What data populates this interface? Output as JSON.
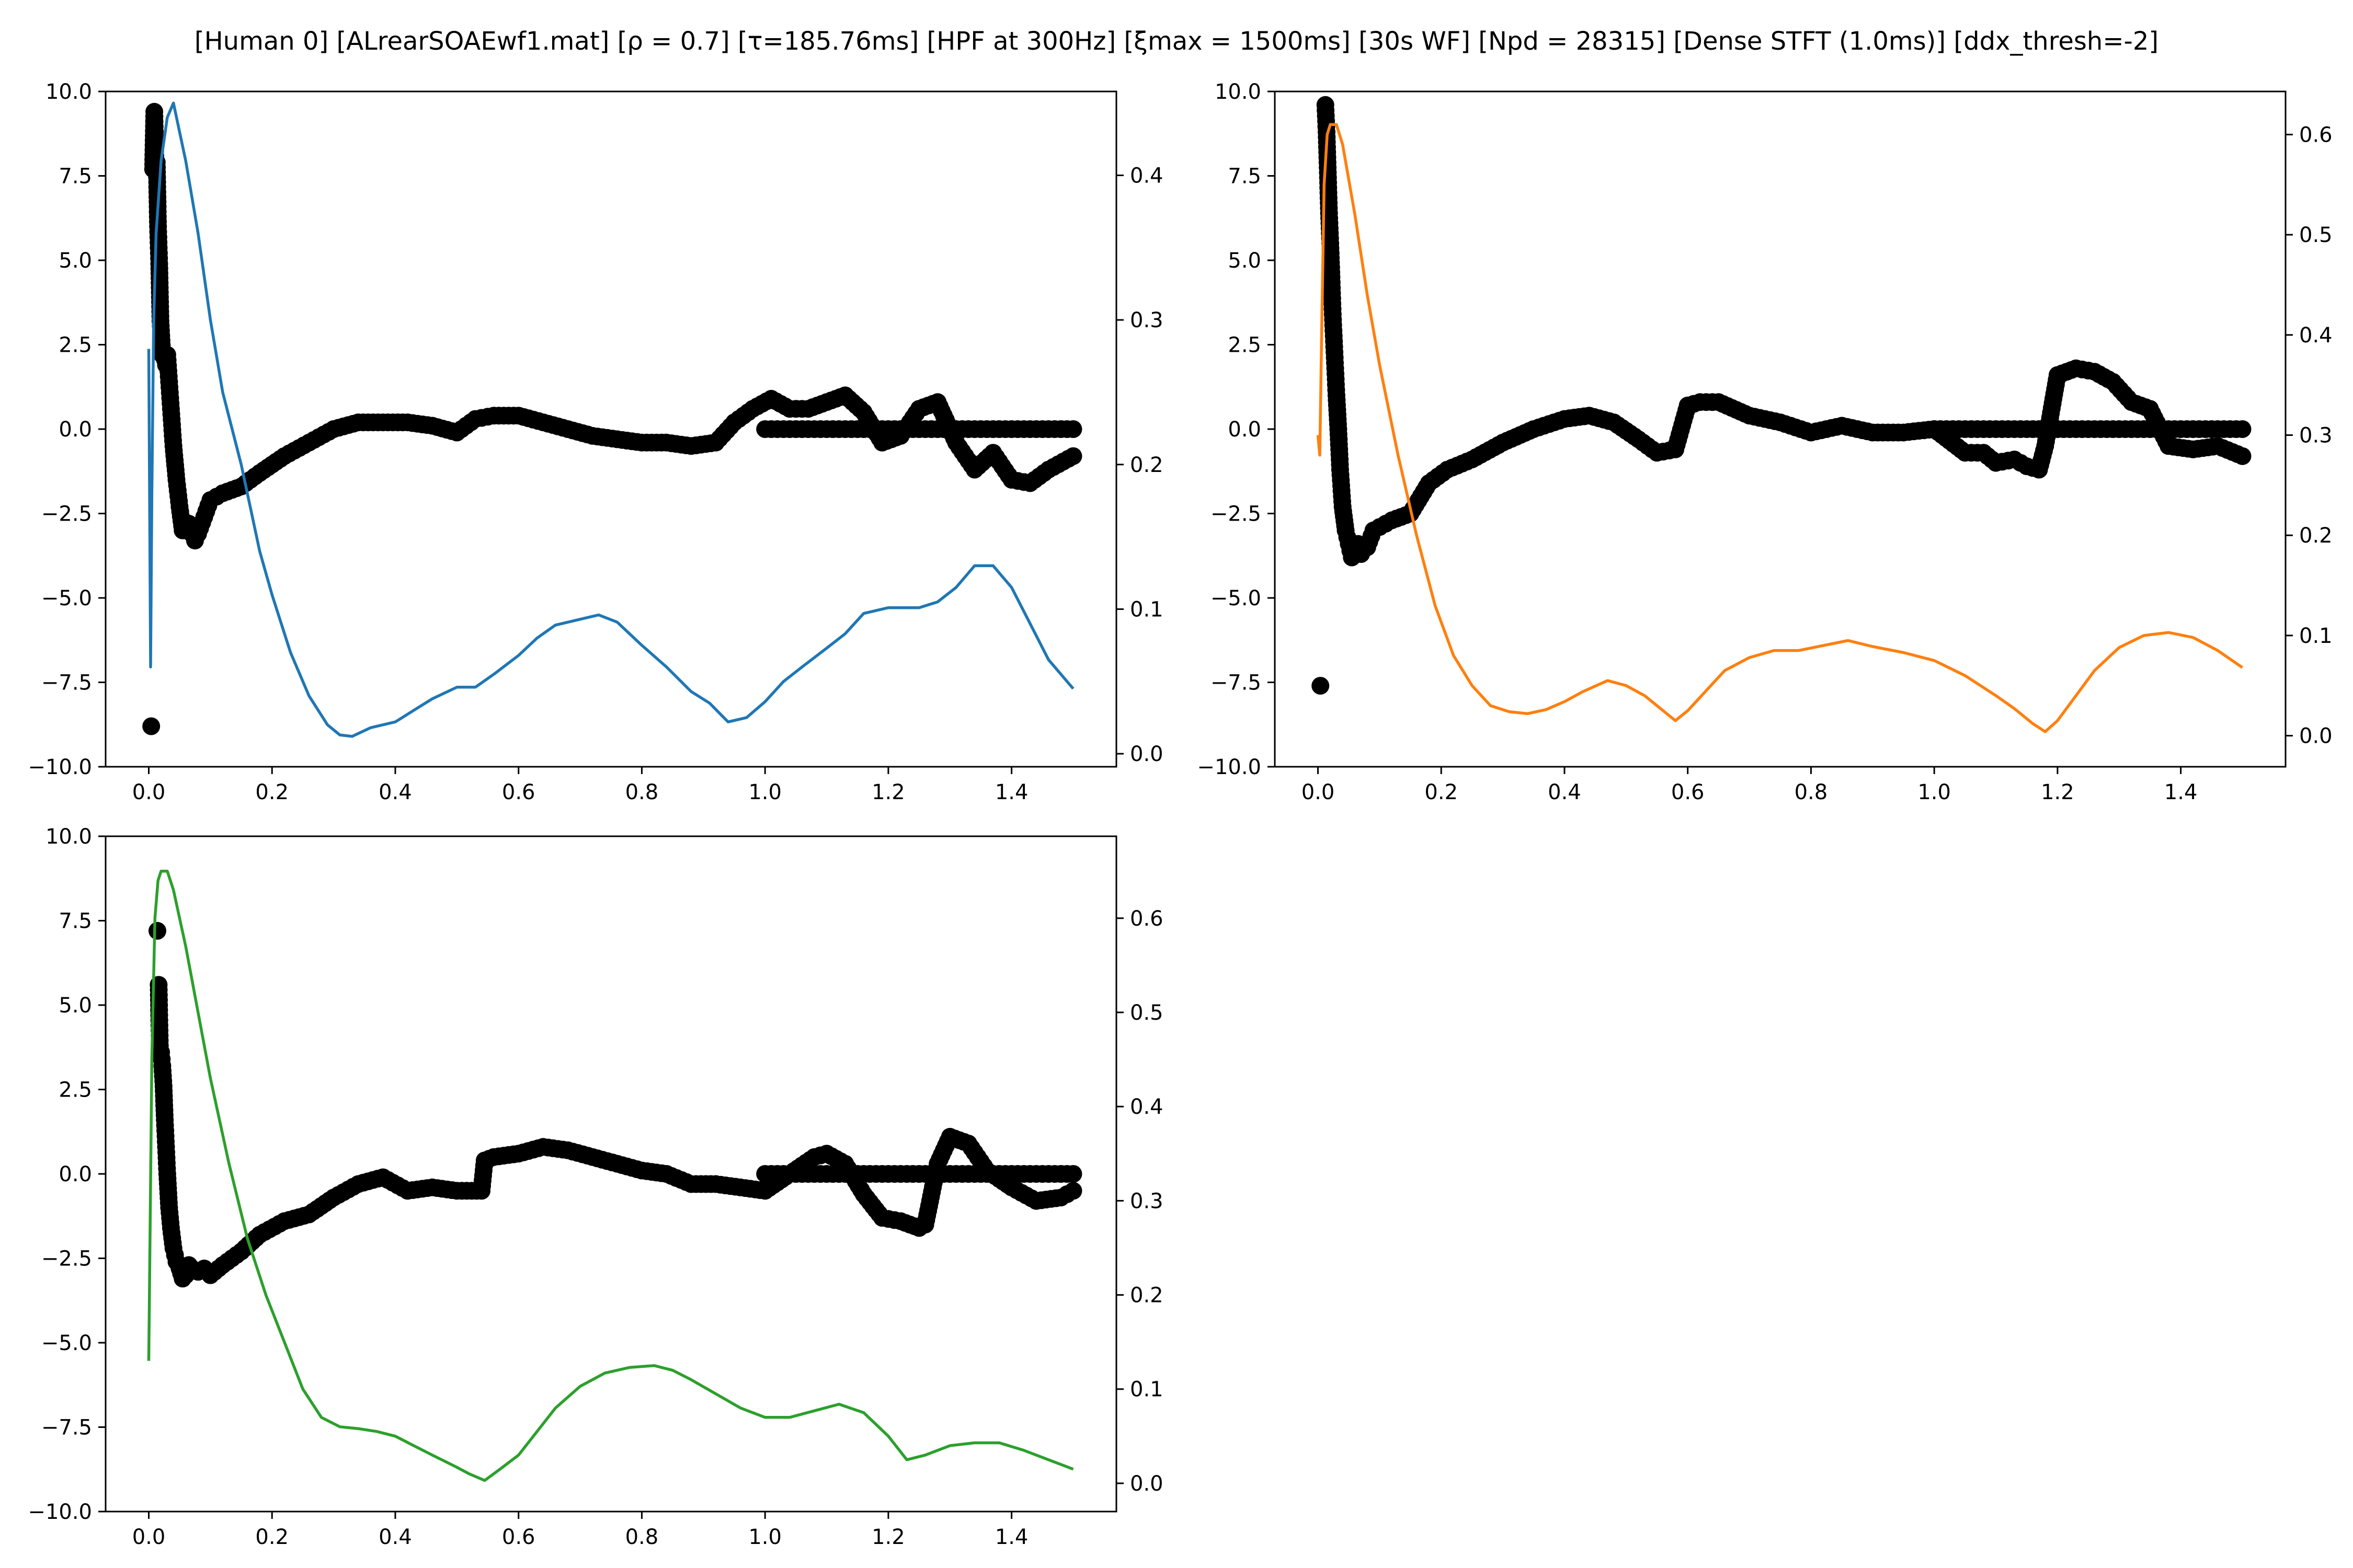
{
  "figure": {
    "suptitle": "[Human 0]   [ALrearSOAEwf1.mat]   [ρ = 0.7]   [τ=185.76ms]   [HPF at 300Hz]   [ξmax = 1500ms]   [30s WF]   [Npd = 28315]   [Dense STFT (1.0ms)]   [ddx_thresh=-2]"
  },
  "colors": {
    "scatter": "#000000",
    "axes": "#000000"
  },
  "chart_data": [
    {
      "type": "line",
      "panel": "top-left",
      "title": "",
      "xlabel": "",
      "ylabel": "",
      "xlim": [
        -0.07,
        1.57
      ],
      "xticks": [
        0.0,
        0.2,
        0.4,
        0.6,
        0.8,
        1.0,
        1.2,
        1.4
      ],
      "xtick_labels": [
        "0.0",
        "0.2",
        "0.4",
        "0.6",
        "0.8",
        "1.0",
        "1.2",
        "1.4"
      ],
      "ylim_left": [
        -10,
        10
      ],
      "yticks_left": [
        -10,
        -7.5,
        -5,
        -2.5,
        0,
        2.5,
        5,
        7.5,
        10
      ],
      "ytick_labels_left": [
        "−10.0",
        "−7.5",
        "−5.0",
        "−2.5",
        "0.0",
        "2.5",
        "5.0",
        "7.5",
        "10.0"
      ],
      "ylim_right": [
        -0.009,
        0.458
      ],
      "yticks_right": [
        0.0,
        0.1,
        0.2,
        0.3,
        0.4
      ],
      "ytick_labels_right": [
        "0.0",
        "0.1",
        "0.2",
        "0.3",
        "0.4"
      ],
      "line_color": "#1f77b4",
      "line": {
        "axis": "right",
        "x": [
          0.0,
          0.003,
          0.005,
          0.008,
          0.012,
          0.02,
          0.03,
          0.04,
          0.06,
          0.08,
          0.1,
          0.12,
          0.15,
          0.18,
          0.2,
          0.23,
          0.26,
          0.29,
          0.31,
          0.33,
          0.36,
          0.4,
          0.43,
          0.46,
          0.5,
          0.53,
          0.56,
          0.6,
          0.63,
          0.66,
          0.7,
          0.73,
          0.76,
          0.8,
          0.84,
          0.88,
          0.91,
          0.94,
          0.97,
          1.0,
          1.03,
          1.06,
          1.1,
          1.13,
          1.16,
          1.2,
          1.25,
          1.28,
          1.31,
          1.34,
          1.37,
          1.4,
          1.43,
          1.46,
          1.5
        ],
        "y": [
          0.28,
          0.06,
          0.18,
          0.3,
          0.36,
          0.41,
          0.44,
          0.45,
          0.41,
          0.36,
          0.3,
          0.25,
          0.2,
          0.14,
          0.11,
          0.07,
          0.04,
          0.02,
          0.013,
          0.012,
          0.018,
          0.022,
          0.03,
          0.038,
          0.046,
          0.046,
          0.055,
          0.068,
          0.08,
          0.089,
          0.093,
          0.096,
          0.091,
          0.075,
          0.06,
          0.043,
          0.035,
          0.022,
          0.025,
          0.036,
          0.05,
          0.06,
          0.073,
          0.083,
          0.097,
          0.101,
          0.101,
          0.105,
          0.115,
          0.13,
          0.13,
          0.115,
          0.09,
          0.065,
          0.045
        ]
      },
      "scatter": {
        "axis": "left",
        "x": [
          0.004,
          0.007,
          0.009,
          0.011,
          0.013,
          0.015,
          0.017,
          0.019,
          0.022,
          0.025,
          0.028,
          0.03,
          0.033,
          0.036,
          0.04,
          0.045,
          0.05,
          0.055,
          0.06,
          0.065,
          0.07,
          0.075,
          0.08,
          0.09,
          0.1,
          0.12,
          0.15,
          0.18,
          0.22,
          0.26,
          0.3,
          0.34,
          0.38,
          0.42,
          0.46,
          0.5,
          0.53,
          0.56,
          0.6,
          0.64,
          0.68,
          0.72,
          0.76,
          0.8,
          0.84,
          0.88,
          0.92,
          0.95,
          0.98,
          1.01,
          1.04,
          1.07,
          1.1,
          1.13,
          1.16,
          1.19,
          1.22,
          1.25,
          1.28,
          1.31,
          1.34,
          1.37,
          1.4,
          1.43,
          1.46,
          1.5
        ],
        "y": [
          -8.8,
          7.7,
          9.4,
          7.8,
          7.9,
          6.0,
          4.9,
          3.2,
          2.2,
          2.2,
          1.9,
          2.2,
          1.4,
          0.6,
          -0.5,
          -1.5,
          -2.3,
          -3.0,
          -3.0,
          -2.8,
          -3.1,
          -3.3,
          -3.1,
          -2.6,
          -2.1,
          -1.9,
          -1.7,
          -1.3,
          -0.8,
          -0.4,
          0.0,
          0.2,
          0.2,
          0.2,
          0.1,
          -0.1,
          0.3,
          0.4,
          0.4,
          0.2,
          0.0,
          -0.2,
          -0.3,
          -0.4,
          -0.4,
          -0.5,
          -0.4,
          0.2,
          0.6,
          0.9,
          0.6,
          0.6,
          0.8,
          1.0,
          0.5,
          -0.4,
          -0.2,
          0.6,
          0.8,
          -0.4,
          -1.2,
          -0.7,
          -1.5,
          -1.6,
          -1.2,
          -0.8
        ]
      },
      "flat_segment": {
        "axis": "left",
        "x_start": 1.0,
        "x_end": 1.5,
        "y": 0.0
      }
    },
    {
      "type": "line",
      "panel": "top-right",
      "title": "",
      "xlabel": "",
      "ylabel": "",
      "xlim": [
        -0.07,
        1.57
      ],
      "xticks": [
        0.0,
        0.2,
        0.4,
        0.6,
        0.8,
        1.0,
        1.2,
        1.4
      ],
      "xtick_labels": [
        "0.0",
        "0.2",
        "0.4",
        "0.6",
        "0.8",
        "1.0",
        "1.2",
        "1.4"
      ],
      "ylim_left": [
        -10,
        10
      ],
      "yticks_left": [
        -10,
        -7.5,
        -5,
        -2.5,
        0,
        2.5,
        5,
        7.5,
        10
      ],
      "ytick_labels_left": [
        "−10.0",
        "−7.5",
        "−5.0",
        "−2.5",
        "0.0",
        "2.5",
        "5.0",
        "7.5",
        "10.0"
      ],
      "ylim_right": [
        -0.031,
        0.643
      ],
      "yticks_right": [
        0.0,
        0.1,
        0.2,
        0.3,
        0.4,
        0.5,
        0.6
      ],
      "ytick_labels_right": [
        "0.0",
        "0.1",
        "0.2",
        "0.3",
        "0.4",
        "0.5",
        "0.6"
      ],
      "line_color": "#ff7f0e",
      "line": {
        "axis": "right",
        "x": [
          0.0,
          0.003,
          0.006,
          0.01,
          0.015,
          0.02,
          0.03,
          0.04,
          0.06,
          0.08,
          0.1,
          0.13,
          0.16,
          0.19,
          0.22,
          0.25,
          0.28,
          0.31,
          0.34,
          0.37,
          0.4,
          0.43,
          0.47,
          0.5,
          0.53,
          0.56,
          0.58,
          0.6,
          0.63,
          0.66,
          0.7,
          0.74,
          0.78,
          0.82,
          0.86,
          0.9,
          0.95,
          1.0,
          1.05,
          1.1,
          1.13,
          1.16,
          1.18,
          1.2,
          1.23,
          1.26,
          1.3,
          1.34,
          1.38,
          1.42,
          1.46,
          1.5
        ],
        "y": [
          0.3,
          0.28,
          0.4,
          0.55,
          0.6,
          0.61,
          0.61,
          0.59,
          0.52,
          0.44,
          0.37,
          0.28,
          0.2,
          0.13,
          0.08,
          0.05,
          0.03,
          0.024,
          0.022,
          0.026,
          0.034,
          0.044,
          0.055,
          0.05,
          0.04,
          0.025,
          0.015,
          0.025,
          0.045,
          0.065,
          0.078,
          0.085,
          0.085,
          0.09,
          0.095,
          0.089,
          0.083,
          0.075,
          0.06,
          0.04,
          0.027,
          0.012,
          0.004,
          0.015,
          0.04,
          0.065,
          0.088,
          0.1,
          0.103,
          0.098,
          0.085,
          0.068
        ]
      },
      "scatter": {
        "axis": "left",
        "x": [
          0.004,
          0.012,
          0.014,
          0.016,
          0.018,
          0.02,
          0.022,
          0.024,
          0.026,
          0.028,
          0.03,
          0.033,
          0.036,
          0.04,
          0.045,
          0.05,
          0.055,
          0.06,
          0.065,
          0.07,
          0.08,
          0.09,
          0.1,
          0.12,
          0.15,
          0.18,
          0.21,
          0.25,
          0.3,
          0.35,
          0.4,
          0.44,
          0.48,
          0.52,
          0.55,
          0.58,
          0.6,
          0.62,
          0.65,
          0.7,
          0.75,
          0.8,
          0.85,
          0.9,
          0.95,
          1.0,
          1.05,
          1.08,
          1.1,
          1.13,
          1.15,
          1.17,
          1.18,
          1.2,
          1.23,
          1.26,
          1.29,
          1.32,
          1.35,
          1.38,
          1.42,
          1.46,
          1.5
        ],
        "y": [
          -7.6,
          9.6,
          8.8,
          7.6,
          6.4,
          5.5,
          4.5,
          3.4,
          2.6,
          1.8,
          1.0,
          0.0,
          -1.2,
          -2.3,
          -3.0,
          -3.4,
          -3.8,
          -3.7,
          -3.4,
          -3.7,
          -3.5,
          -3.0,
          -2.9,
          -2.7,
          -2.5,
          -1.6,
          -1.2,
          -0.9,
          -0.4,
          0.0,
          0.3,
          0.4,
          0.2,
          -0.3,
          -0.7,
          -0.6,
          0.7,
          0.8,
          0.8,
          0.4,
          0.2,
          -0.1,
          0.1,
          -0.1,
          -0.1,
          0.0,
          -0.7,
          -0.7,
          -1.0,
          -0.9,
          -1.1,
          -1.2,
          -0.5,
          1.6,
          1.8,
          1.7,
          1.4,
          0.8,
          0.6,
          -0.5,
          -0.6,
          -0.5,
          -0.8
        ]
      },
      "flat_segment": {
        "axis": "left",
        "x_start": 1.0,
        "x_end": 1.5,
        "y": 0.0
      }
    },
    {
      "type": "line",
      "panel": "bottom-left",
      "title": "",
      "xlabel": "",
      "ylabel": "",
      "xlim": [
        -0.07,
        1.57
      ],
      "xticks": [
        0.0,
        0.2,
        0.4,
        0.6,
        0.8,
        1.0,
        1.2,
        1.4
      ],
      "xtick_labels": [
        "0.0",
        "0.2",
        "0.4",
        "0.6",
        "0.8",
        "1.0",
        "1.2",
        "1.4"
      ],
      "ylim_left": [
        -10,
        10
      ],
      "yticks_left": [
        -10,
        -7.5,
        -5,
        -2.5,
        0,
        2.5,
        5,
        7.5,
        10
      ],
      "ytick_labels_left": [
        "−10.0",
        "−7.5",
        "−5.0",
        "−2.5",
        "0.0",
        "2.5",
        "5.0",
        "7.5",
        "10.0"
      ],
      "ylim_right": [
        -0.03,
        0.687
      ],
      "yticks_right": [
        0.0,
        0.1,
        0.2,
        0.3,
        0.4,
        0.5,
        0.6
      ],
      "ytick_labels_right": [
        "0.0",
        "0.1",
        "0.2",
        "0.3",
        "0.4",
        "0.5",
        "0.6"
      ],
      "line_color": "#2ca02c",
      "line": {
        "axis": "right",
        "x": [
          0.0,
          0.005,
          0.01,
          0.015,
          0.02,
          0.03,
          0.04,
          0.06,
          0.08,
          0.1,
          0.13,
          0.16,
          0.19,
          0.22,
          0.25,
          0.28,
          0.31,
          0.34,
          0.37,
          0.4,
          0.43,
          0.46,
          0.5,
          0.52,
          0.545,
          0.57,
          0.6,
          0.63,
          0.66,
          0.7,
          0.74,
          0.78,
          0.82,
          0.85,
          0.88,
          0.92,
          0.96,
          1.0,
          1.04,
          1.08,
          1.12,
          1.16,
          1.2,
          1.23,
          1.26,
          1.3,
          1.34,
          1.38,
          1.42,
          1.46,
          1.5
        ],
        "y": [
          0.13,
          0.45,
          0.6,
          0.64,
          0.65,
          0.65,
          0.63,
          0.57,
          0.5,
          0.43,
          0.34,
          0.26,
          0.2,
          0.15,
          0.1,
          0.07,
          0.06,
          0.058,
          0.055,
          0.05,
          0.04,
          0.03,
          0.017,
          0.01,
          0.003,
          0.015,
          0.03,
          0.055,
          0.08,
          0.103,
          0.117,
          0.123,
          0.125,
          0.12,
          0.11,
          0.095,
          0.08,
          0.07,
          0.07,
          0.077,
          0.084,
          0.075,
          0.05,
          0.025,
          0.03,
          0.04,
          0.043,
          0.043,
          0.035,
          0.025,
          0.015
        ]
      },
      "scatter": {
        "axis": "left",
        "x": [
          0.014,
          0.016,
          0.018,
          0.02,
          0.022,
          0.024,
          0.026,
          0.028,
          0.03,
          0.033,
          0.036,
          0.04,
          0.045,
          0.05,
          0.055,
          0.06,
          0.065,
          0.07,
          0.08,
          0.09,
          0.1,
          0.12,
          0.15,
          0.18,
          0.22,
          0.26,
          0.3,
          0.34,
          0.38,
          0.42,
          0.46,
          0.5,
          0.54,
          0.545,
          0.56,
          0.6,
          0.64,
          0.68,
          0.72,
          0.76,
          0.8,
          0.84,
          0.88,
          0.92,
          0.96,
          1.0,
          1.04,
          1.08,
          1.1,
          1.13,
          1.16,
          1.19,
          1.22,
          1.25,
          1.26,
          1.28,
          1.3,
          1.33,
          1.36,
          1.4,
          1.44,
          1.48,
          1.5
        ],
        "y": [
          7.2,
          5.6,
          3.8,
          3.6,
          3.2,
          2.6,
          1.6,
          0.8,
          0.0,
          -1.0,
          -1.6,
          -2.2,
          -2.6,
          -2.8,
          -3.1,
          -3.0,
          -2.7,
          -2.8,
          -2.9,
          -2.8,
          -3.0,
          -2.7,
          -2.3,
          -1.8,
          -1.4,
          -1.2,
          -0.7,
          -0.3,
          -0.1,
          -0.5,
          -0.4,
          -0.5,
          -0.5,
          0.4,
          0.5,
          0.6,
          0.8,
          0.7,
          0.5,
          0.3,
          0.1,
          0.0,
          -0.3,
          -0.3,
          -0.4,
          -0.5,
          0.0,
          0.5,
          0.6,
          0.3,
          -0.6,
          -1.3,
          -1.4,
          -1.6,
          -1.5,
          0.3,
          1.1,
          0.9,
          0.1,
          -0.4,
          -0.8,
          -0.7,
          -0.5
        ]
      },
      "flat_segment": {
        "axis": "left",
        "x_start": 1.0,
        "x_end": 1.5,
        "y": 0.0
      }
    }
  ]
}
